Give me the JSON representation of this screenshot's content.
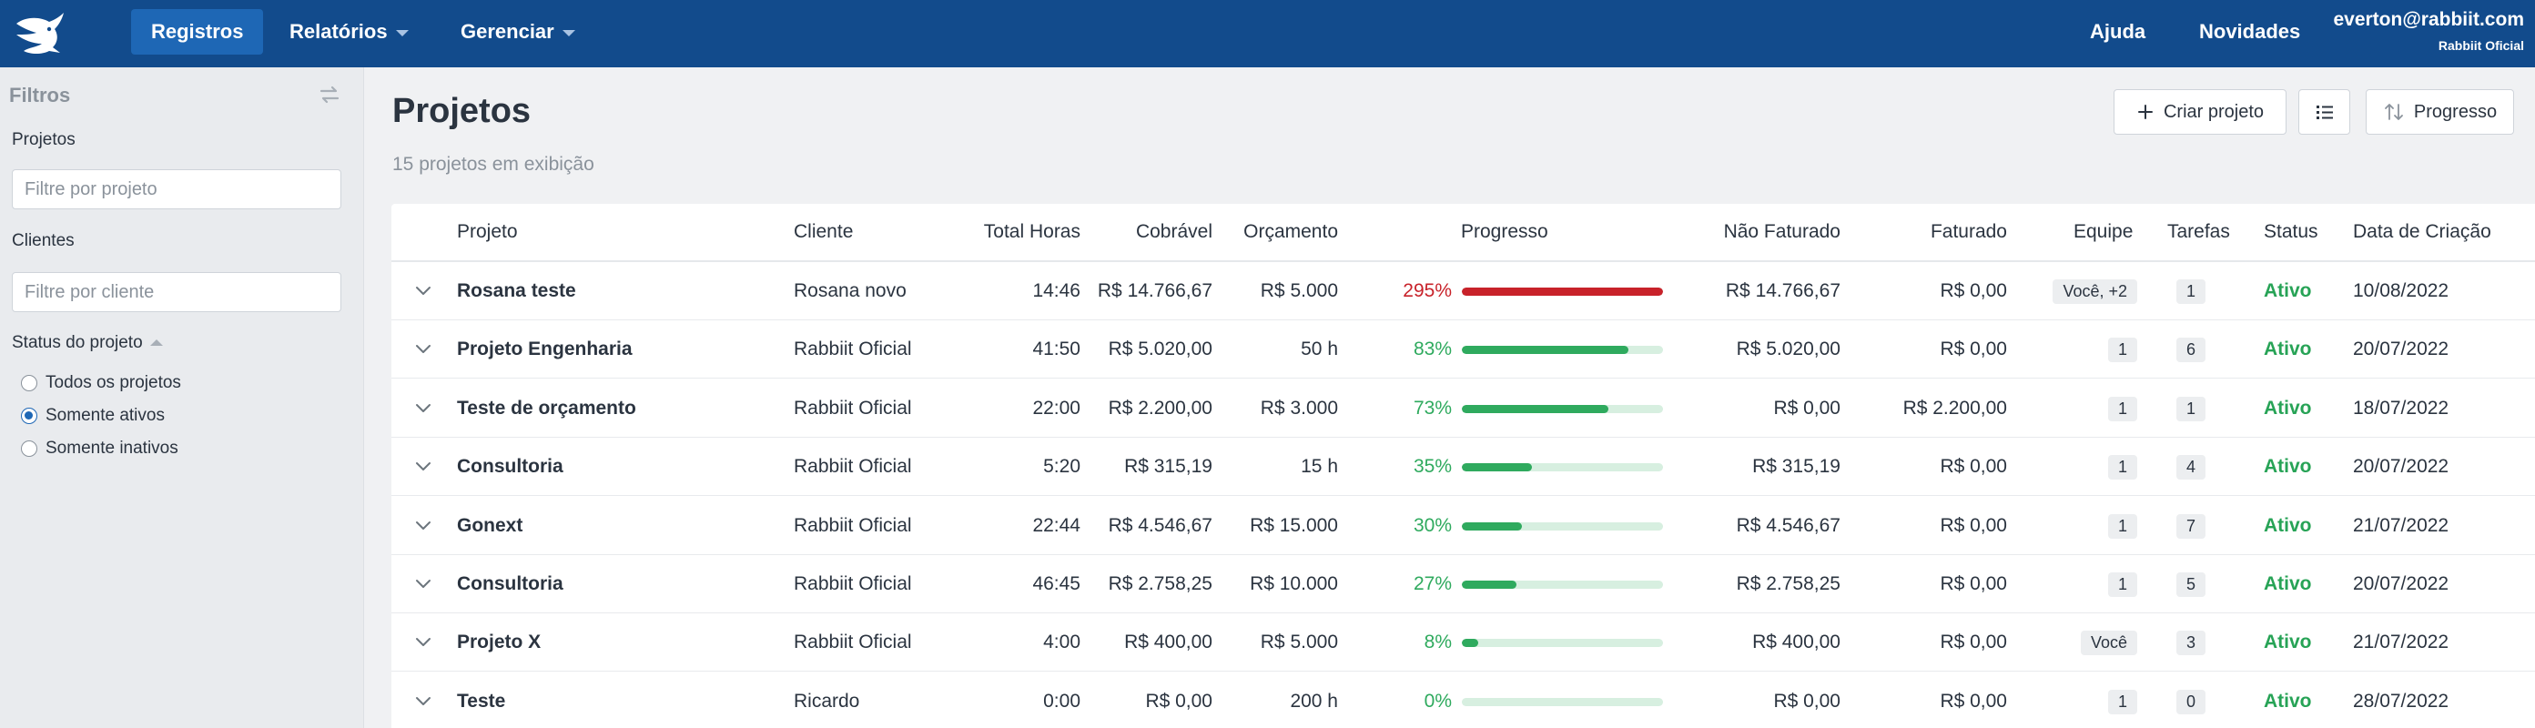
{
  "topbar": {
    "nav": [
      {
        "label": "Registros",
        "active": true
      },
      {
        "label": "Relatórios",
        "has_dropdown": true
      },
      {
        "label": "Gerenciar",
        "has_dropdown": true
      }
    ],
    "right_nav": [
      {
        "label": "Ajuda"
      },
      {
        "label": "Novidades"
      }
    ],
    "user_email": "everton@rabbiit.com",
    "user_org": "Rabbiit Oficial"
  },
  "sidebar": {
    "title": "Filtros",
    "projects_label": "Projetos",
    "projects_placeholder": "Filtre por projeto",
    "clients_label": "Clientes",
    "clients_placeholder": "Filtre por cliente",
    "status_label": "Status do projeto",
    "status_options": [
      {
        "label": "Todos os projetos",
        "checked": false
      },
      {
        "label": "Somente ativos",
        "checked": true
      },
      {
        "label": "Somente inativos",
        "checked": false
      }
    ]
  },
  "main": {
    "title": "Projetos",
    "subtitle": "15 projetos em exibição",
    "create_button": "Criar projeto",
    "sort_button": "Progresso"
  },
  "table": {
    "headers": [
      "Projeto",
      "Cliente",
      "Total Horas",
      "Cobrável",
      "Orçamento",
      "Progresso",
      "Não Faturado",
      "Faturado",
      "Equipe",
      "Tarefas",
      "Status",
      "Data de Criação"
    ],
    "rows": [
      {
        "project": "Rosana teste",
        "client": "Rosana novo",
        "hours": "14:46",
        "billable": "R$ 14.766,67",
        "budget": "R$ 5.000",
        "progress": "295%",
        "progress_value": 295,
        "unbilled": "R$ 14.766,67",
        "billed": "R$ 0,00",
        "team": "Você, +2",
        "tasks": "1",
        "status": "Ativo",
        "created": "10/08/2022"
      },
      {
        "project": "Projeto Engenharia",
        "client": "Rabbiit Oficial",
        "hours": "41:50",
        "billable": "R$ 5.020,00",
        "budget": "50 h",
        "progress": "83%",
        "progress_value": 83,
        "unbilled": "R$ 5.020,00",
        "billed": "R$ 0,00",
        "team": "1",
        "tasks": "6",
        "status": "Ativo",
        "created": "20/07/2022"
      },
      {
        "project": "Teste de orçamento",
        "client": "Rabbiit Oficial",
        "hours": "22:00",
        "billable": "R$ 2.200,00",
        "budget": "R$ 3.000",
        "progress": "73%",
        "progress_value": 73,
        "unbilled": "R$ 0,00",
        "billed": "R$ 2.200,00",
        "team": "1",
        "tasks": "1",
        "status": "Ativo",
        "created": "18/07/2022"
      },
      {
        "project": "Consultoria",
        "client": "Rabbiit Oficial",
        "hours": "5:20",
        "billable": "R$ 315,19",
        "budget": "15 h",
        "progress": "35%",
        "progress_value": 35,
        "unbilled": "R$ 315,19",
        "billed": "R$ 0,00",
        "team": "1",
        "tasks": "4",
        "status": "Ativo",
        "created": "20/07/2022"
      },
      {
        "project": "Gonext",
        "client": "Rabbiit Oficial",
        "hours": "22:44",
        "billable": "R$ 4.546,67",
        "budget": "R$ 15.000",
        "progress": "30%",
        "progress_value": 30,
        "unbilled": "R$ 4.546,67",
        "billed": "R$ 0,00",
        "team": "1",
        "tasks": "7",
        "status": "Ativo",
        "created": "21/07/2022"
      },
      {
        "project": "Consultoria",
        "client": "Rabbiit Oficial",
        "hours": "46:45",
        "billable": "R$ 2.758,25",
        "budget": "R$ 10.000",
        "progress": "27%",
        "progress_value": 27,
        "unbilled": "R$ 2.758,25",
        "billed": "R$ 0,00",
        "team": "1",
        "tasks": "5",
        "status": "Ativo",
        "created": "20/07/2022"
      },
      {
        "project": "Projeto X",
        "client": "Rabbiit Oficial",
        "hours": "4:00",
        "billable": "R$ 400,00",
        "budget": "R$ 5.000",
        "progress": "8%",
        "progress_value": 8,
        "unbilled": "R$ 400,00",
        "billed": "R$ 0,00",
        "team": "Você",
        "tasks": "3",
        "status": "Ativo",
        "created": "21/07/2022"
      },
      {
        "project": "Teste",
        "client": "Ricardo",
        "hours": "0:00",
        "billable": "R$ 0,00",
        "budget": "200 h",
        "progress": "0%",
        "progress_value": 0,
        "unbilled": "R$ 0,00",
        "billed": "R$ 0,00",
        "team": "1",
        "tasks": "0",
        "status": "Ativo",
        "created": "28/07/2022"
      }
    ]
  },
  "colors": {
    "topbar": "#124b8c",
    "nav_active": "#1e67b5",
    "progress_ok": "#2faa5e",
    "progress_over": "#c8222a",
    "progress_track": "#d7efe0",
    "status_active": "#27a356"
  }
}
